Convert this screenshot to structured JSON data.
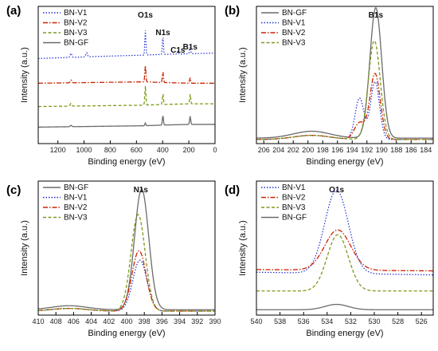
{
  "colors": {
    "BN-V1": "#1f2fd6",
    "BN-V2": "#cc2200",
    "BN-V3": "#7a9a1a",
    "BN-GF": "#6b6b6b"
  },
  "chart_data": [
    {
      "panel": "(a)",
      "type": "line",
      "title": "",
      "xlabel": "Binding energy (eV)",
      "ylabel": "Intensity (a.u.)",
      "xlim": [
        1350,
        0
      ],
      "xticks": [
        1200,
        1000,
        800,
        600,
        400,
        200,
        0
      ],
      "legend": {
        "position": "top-left",
        "entries": [
          "BN-V1",
          "BN-V2",
          "BN-V3",
          "BN-GF"
        ]
      },
      "annotations": [
        {
          "text": "O1s",
          "x": 532
        },
        {
          "text": "N1s",
          "x": 398
        },
        {
          "text": "C1s",
          "x": 284
        },
        {
          "text": "B1s",
          "x": 190
        }
      ],
      "series": [
        {
          "name": "BN-V1",
          "baseline": 0.62,
          "steps": [
            [
              1350,
              0.62
            ],
            [
              900,
              0.635
            ],
            [
              540,
              0.645
            ],
            [
              400,
              0.65
            ],
            [
              190,
              0.655
            ],
            [
              0,
              0.66
            ]
          ],
          "peaks": [
            [
              1100,
              0.03,
              6
            ],
            [
              980,
              0.03,
              6
            ],
            [
              532,
              0.18,
              4
            ],
            [
              398,
              0.13,
              4
            ],
            [
              284,
              0.02,
              4
            ],
            [
              190,
              0.05,
              4
            ]
          ]
        },
        {
          "name": "BN-V2",
          "baseline": 0.44,
          "steps": [
            [
              1350,
              0.44
            ],
            [
              540,
              0.45
            ],
            [
              400,
              0.445
            ],
            [
              190,
              0.44
            ],
            [
              0,
              0.44
            ]
          ],
          "peaks": [
            [
              1100,
              0.02,
              6
            ],
            [
              532,
              0.12,
              4
            ],
            [
              398,
              0.08,
              4
            ],
            [
              190,
              0.04,
              4
            ]
          ]
        },
        {
          "name": "BN-V3",
          "baseline": 0.27,
          "steps": [
            [
              1350,
              0.27
            ],
            [
              540,
              0.28
            ],
            [
              400,
              0.285
            ],
            [
              190,
              0.29
            ],
            [
              0,
              0.29
            ]
          ],
          "peaks": [
            [
              1100,
              0.02,
              6
            ],
            [
              532,
              0.14,
              4
            ],
            [
              398,
              0.08,
              4
            ],
            [
              190,
              0.07,
              4
            ]
          ]
        },
        {
          "name": "BN-GF",
          "baseline": 0.12,
          "steps": [
            [
              1350,
              0.12
            ],
            [
              540,
              0.13
            ],
            [
              400,
              0.135
            ],
            [
              190,
              0.14
            ],
            [
              0,
              0.14
            ]
          ],
          "peaks": [
            [
              1100,
              0.01,
              6
            ],
            [
              532,
              0.02,
              4
            ],
            [
              398,
              0.07,
              4
            ],
            [
              190,
              0.06,
              4
            ]
          ]
        }
      ]
    },
    {
      "panel": "(b)",
      "type": "line",
      "title": "",
      "xlabel": "Binding energy (eV)",
      "ylabel": "Intensity (a.u.)",
      "xlim": [
        207,
        183
      ],
      "xticks": [
        206,
        204,
        202,
        200,
        198,
        196,
        194,
        192,
        190,
        188,
        186,
        184
      ],
      "legend": {
        "position": "top-left",
        "entries": [
          "BN-GF",
          "BN-V1",
          "BN-V2",
          "BN-V3"
        ]
      },
      "annotations": [
        {
          "text": "B1s",
          "x": 190.8
        }
      ],
      "series": [
        {
          "name": "BN-GF",
          "baseline": 0.04,
          "hump": [
            199.5,
            0.05,
            2.5
          ],
          "peaks": [
            [
              190.8,
              0.95,
              0.8
            ]
          ]
        },
        {
          "name": "BN-V1",
          "baseline": 0.03,
          "hump": [
            199.5,
            0.03,
            2.5
          ],
          "peaks": [
            [
              190.9,
              0.42,
              0.6
            ],
            [
              193.0,
              0.3,
              0.6
            ]
          ]
        },
        {
          "name": "BN-V2",
          "baseline": 0.03,
          "hump": [
            199.5,
            0.03,
            2.5
          ],
          "peaks": [
            [
              190.9,
              0.48,
              0.7
            ],
            [
              193.0,
              0.12,
              0.7
            ]
          ]
        },
        {
          "name": "BN-V3",
          "baseline": 0.03,
          "hump": [
            199.5,
            0.03,
            2.5
          ],
          "peaks": [
            [
              191.0,
              0.72,
              0.8
            ]
          ]
        }
      ]
    },
    {
      "panel": "(c)",
      "type": "line",
      "title": "",
      "xlabel": "Binding energy (eV)",
      "ylabel": "Intensity (a.u.)",
      "xlim": [
        410,
        390
      ],
      "xticks": [
        410,
        408,
        406,
        404,
        402,
        400,
        398,
        396,
        394,
        392,
        390
      ],
      "legend": {
        "position": "top-left",
        "entries": [
          "BN-GF",
          "BN-V1",
          "BN-V2",
          "BN-V3"
        ]
      },
      "annotations": [
        {
          "text": "N1s",
          "x": 398.4
        }
      ],
      "series": [
        {
          "name": "BN-GF",
          "baseline": 0.04,
          "hump": [
            406.5,
            0.03,
            2.0
          ],
          "peaks": [
            [
              398.3,
              0.9,
              0.8
            ]
          ]
        },
        {
          "name": "BN-V1",
          "baseline": 0.03,
          "hump": [
            406.5,
            0.02,
            2.0
          ],
          "peaks": [
            [
              398.5,
              0.38,
              0.8
            ]
          ]
        },
        {
          "name": "BN-V2",
          "baseline": 0.03,
          "hump": [
            406.5,
            0.02,
            2.0
          ],
          "peaks": [
            [
              398.6,
              0.45,
              0.8
            ]
          ]
        },
        {
          "name": "BN-V3",
          "baseline": 0.03,
          "hump": [
            406.5,
            0.02,
            2.0
          ],
          "peaks": [
            [
              398.7,
              0.72,
              0.8
            ]
          ]
        }
      ]
    },
    {
      "panel": "(d)",
      "type": "line",
      "title": "",
      "xlabel": "Binding energy (eV)",
      "ylabel": "Intensity (a.u.)",
      "xlim": [
        540,
        525
      ],
      "xticks": [
        540,
        538,
        536,
        534,
        532,
        530,
        528,
        526
      ],
      "legend": {
        "position": "top-left",
        "entries": [
          "BN-V1",
          "BN-V2",
          "BN-V3",
          "BN-GF"
        ]
      },
      "annotations": [
        {
          "text": "O1s",
          "x": 533.2
        }
      ],
      "series": [
        {
          "name": "BN-V1",
          "baseline": 0.3,
          "tilt": 0.02,
          "peaks": [
            [
              533.2,
              0.62,
              1.0
            ]
          ]
        },
        {
          "name": "BN-V2",
          "baseline": 0.33,
          "tilt": 0.01,
          "peaks": [
            [
              533.1,
              0.3,
              1.1
            ]
          ]
        },
        {
          "name": "BN-V3",
          "baseline": 0.18,
          "tilt": 0.0,
          "peaks": [
            [
              533.1,
              0.42,
              0.9
            ]
          ]
        },
        {
          "name": "BN-GF",
          "baseline": 0.04,
          "tilt": 0.0,
          "peaks": [
            [
              533.2,
              0.04,
              1.0
            ]
          ]
        }
      ]
    }
  ]
}
